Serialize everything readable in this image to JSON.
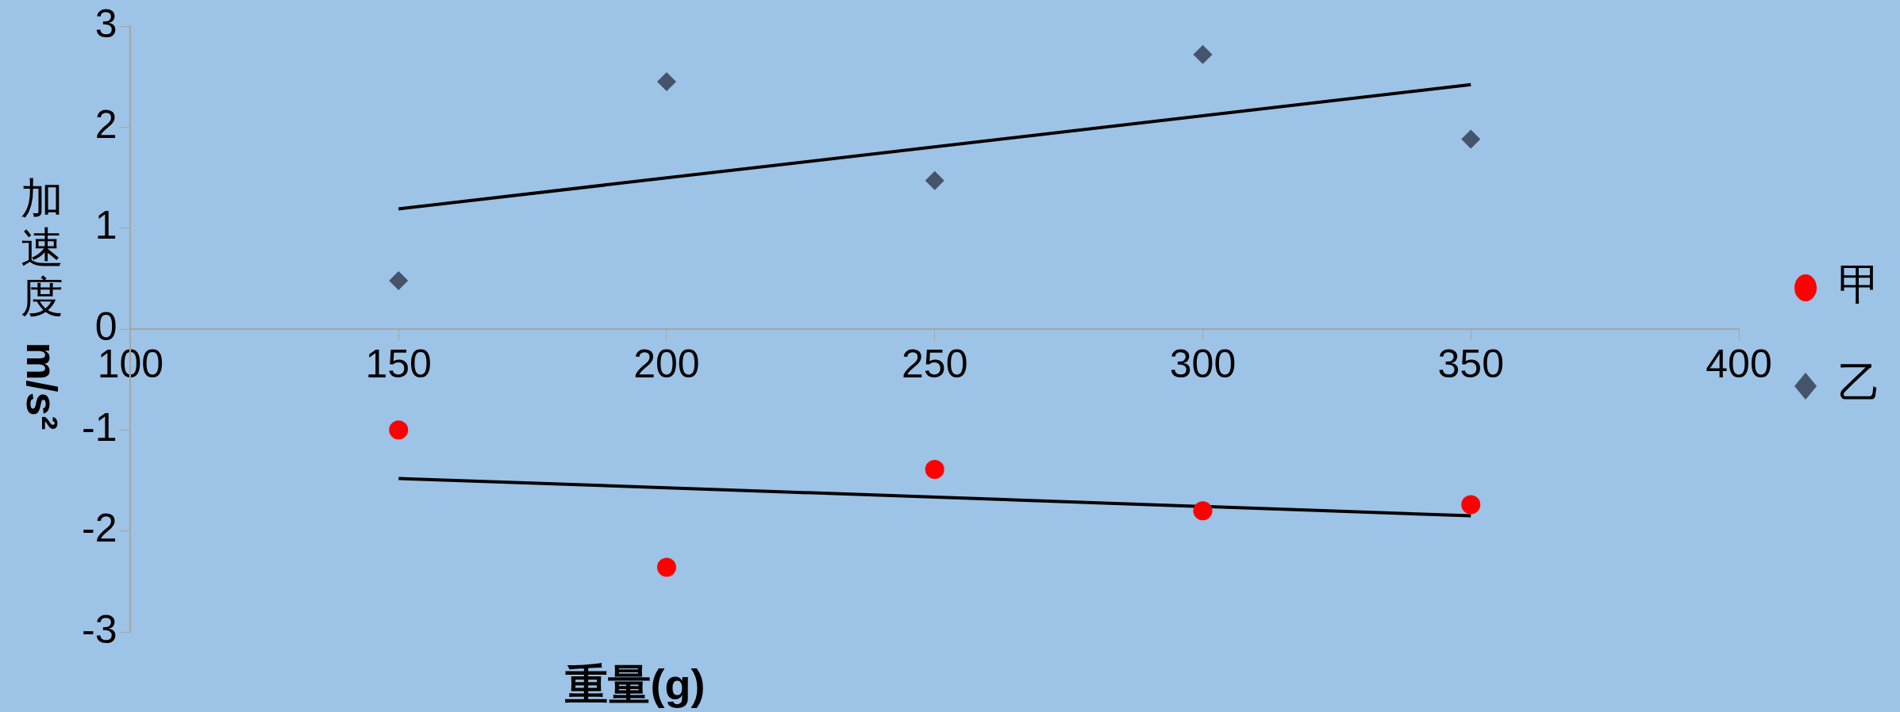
{
  "chart_data": {
    "type": "scatter",
    "xlabel": "重量(g)",
    "ylabel": "加速度 m/s²",
    "xlim": [
      100,
      400
    ],
    "xticks": [
      100,
      150,
      200,
      250,
      300,
      350,
      400
    ],
    "ylim": [
      -3,
      3
    ],
    "yticks": [
      -3,
      -2,
      -1,
      0,
      1,
      2,
      3
    ],
    "grid": false,
    "legend": "right",
    "series": [
      {
        "name": "甲",
        "type": "scatter",
        "marker": "circle",
        "color": "#ff0000",
        "x": [
          150,
          200,
          250,
          300,
          350
        ],
        "values": [
          -1.0,
          -2.36,
          -1.39,
          -1.8,
          -1.74
        ]
      },
      {
        "name": "乙",
        "type": "scatter",
        "marker": "diamond",
        "color": "#44546a",
        "x": [
          150,
          200,
          250,
          300,
          350
        ],
        "values": [
          0.48,
          2.45,
          1.47,
          2.72,
          1.88
        ]
      },
      {
        "type": "line",
        "marker": "none",
        "color": "#000000",
        "x": [
          150,
          350
        ],
        "values": [
          1.19,
          2.42
        ]
      },
      {
        "type": "line",
        "marker": "none",
        "color": "#000000",
        "x": [
          150,
          350
        ],
        "values": [
          -1.48,
          -1.85
        ]
      }
    ]
  }
}
